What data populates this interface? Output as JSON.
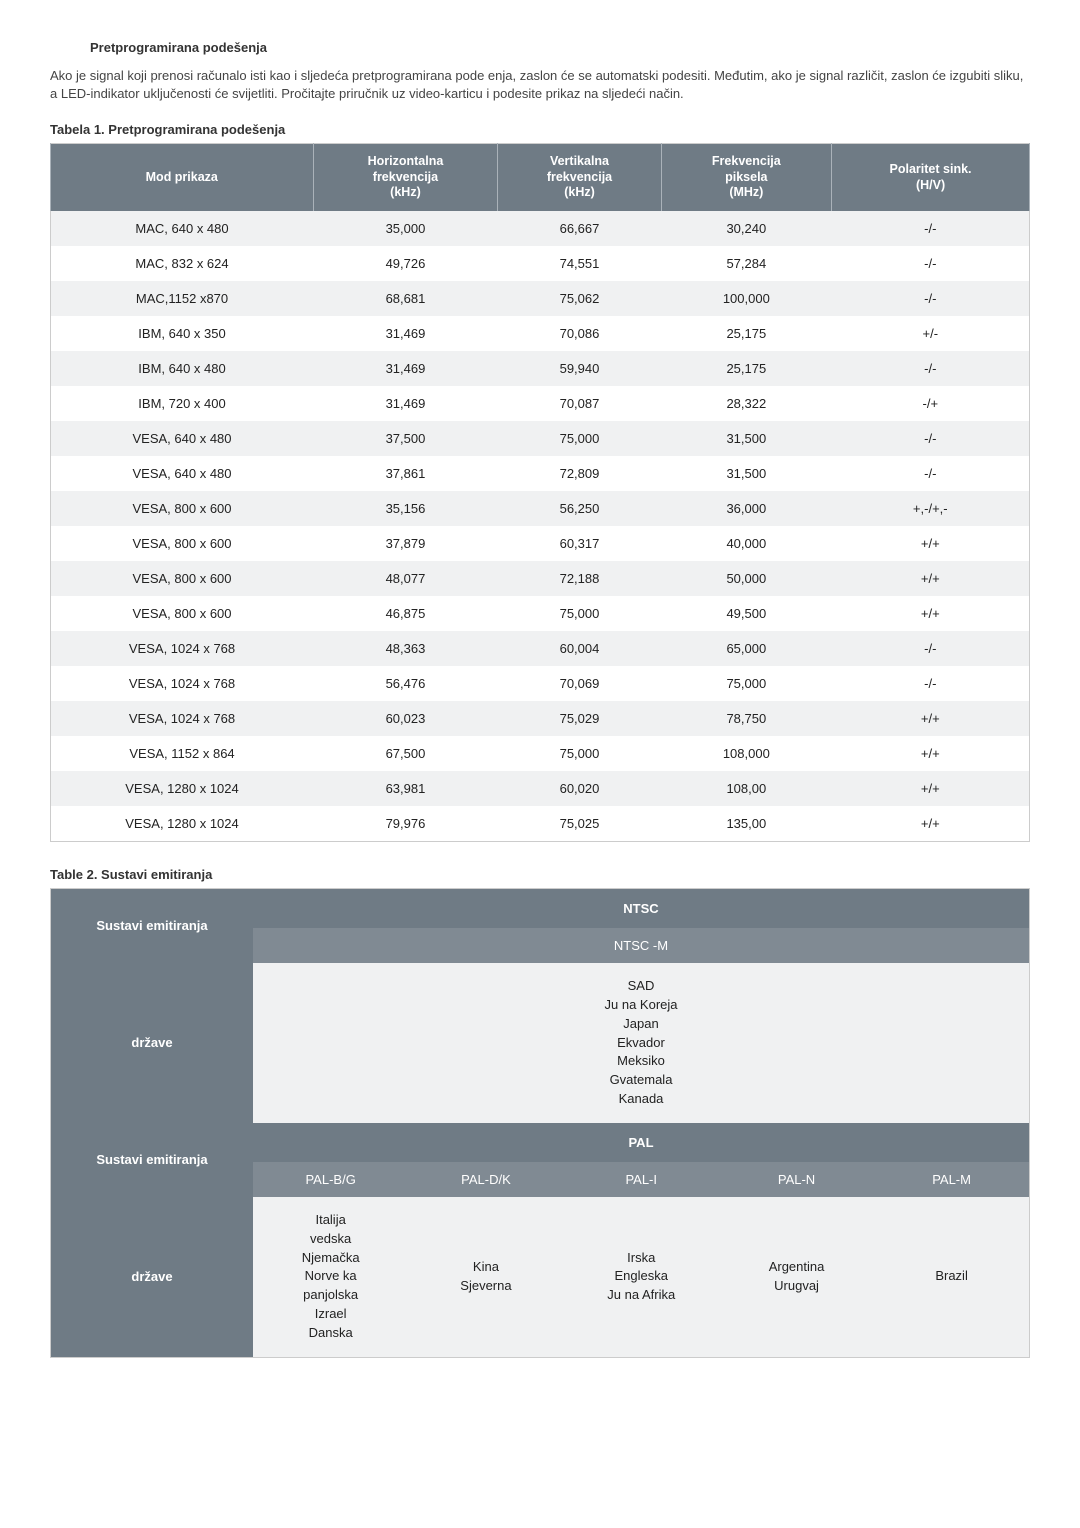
{
  "section_title": "Pretprogramirana podešenja",
  "intro_text": "Ako je signal koji prenosi računalo isti kao i sljedeća pretprogramirana pode enja, zaslon  će se automatski podesiti. Međutim, ako je signal različit, zaslon će izgubiti sliku, a LED-indikator uključenosti će svijetliti. Pročitajte priručnik uz video-karticu i podesite prikaz na sljedeći način.",
  "table1": {
    "title": "Tabela 1. Pretprogramirana podešenja",
    "columns": [
      "Mod prikaza",
      "Horizontalna\nfrekvencija\n(kHz)",
      "Vertikalna\nfrekvencija\n(kHz)",
      "Frekvencija\npiksela\n(MHz)",
      "Polaritet sink.\n(H/V)"
    ],
    "rows": [
      [
        "MAC, 640 x 480",
        "35,000",
        "66,667",
        "30,240",
        "-/-"
      ],
      [
        "MAC, 832 x 624",
        "49,726",
        "74,551",
        "57,284",
        "-/-"
      ],
      [
        "MAC,1152 x870",
        "68,681",
        "75,062",
        "100,000",
        "-/-"
      ],
      [
        "IBM, 640 x 350",
        "31,469",
        "70,086",
        "25,175",
        "+/-"
      ],
      [
        "IBM, 640 x 480",
        "31,469",
        "59,940",
        "25,175",
        "-/-"
      ],
      [
        "IBM, 720 x 400",
        "31,469",
        "70,087",
        "28,322",
        "-/+"
      ],
      [
        "VESA, 640 x 480",
        "37,500",
        "75,000",
        "31,500",
        "-/-"
      ],
      [
        "VESA, 640 x 480",
        "37,861",
        "72,809",
        "31,500",
        "-/-"
      ],
      [
        "VESA, 800 x 600",
        "35,156",
        "56,250",
        "36,000",
        "+,-/+,-"
      ],
      [
        "VESA, 800 x 600",
        "37,879",
        "60,317",
        "40,000",
        "+/+"
      ],
      [
        "VESA, 800 x 600",
        "48,077",
        "72,188",
        "50,000",
        "+/+"
      ],
      [
        "VESA, 800 x 600",
        "46,875",
        "75,000",
        "49,500",
        "+/+"
      ],
      [
        "VESA, 1024 x 768",
        "48,363",
        "60,004",
        "65,000",
        "-/-"
      ],
      [
        "VESA, 1024 x 768",
        "56,476",
        "70,069",
        "75,000",
        "-/-"
      ],
      [
        "VESA, 1024 x 768",
        "60,023",
        "75,029",
        "78,750",
        "+/+"
      ],
      [
        "VESA, 1152 x 864",
        "67,500",
        "75,000",
        "108,000",
        "+/+"
      ],
      [
        "VESA, 1280 x 1024",
        "63,981",
        "60,020",
        "108,00",
        "+/+"
      ],
      [
        "VESA, 1280 x 1024",
        "79,976",
        "75,025",
        "135,00",
        "+/+"
      ]
    ]
  },
  "table2": {
    "title": "Table 2. Sustavi emitiranja",
    "side_labels": {
      "sustavi": "Sustavi emitiranja",
      "drzave": "države"
    },
    "ntsc": {
      "header": "NTSC",
      "sub": "NTSC -M",
      "countries": "SAD\nJu na Koreja\nJapan\nEkvador\nMeksiko\nGvatemala\nKanada"
    },
    "pal": {
      "header": "PAL",
      "subs": [
        "PAL-B/G",
        "PAL-D/K",
        "PAL-I",
        "PAL-N",
        "PAL-M"
      ],
      "countries": [
        "Italija\nvedska\nNjemačka\nNorve ka\npanjolska\nIzrael\nDanska",
        "Kina\nSjeverna",
        "Irska\nEngleska\nJu na Afrika",
        "Argentina\nUrugvaj",
        "Brazil"
      ]
    }
  }
}
